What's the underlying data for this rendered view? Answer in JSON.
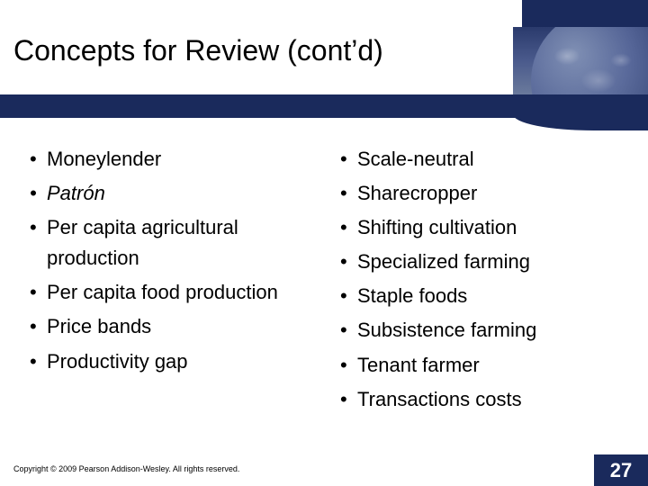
{
  "slide": {
    "title": "Concepts for Review (cont’d)",
    "copyright": "Copyright © 2009 Pearson Addison-Wesley. All rights reserved.",
    "page_number": "27"
  },
  "columns": {
    "left": [
      {
        "text": "Moneylender",
        "italic": false
      },
      {
        "text": "Patrón",
        "italic": true
      },
      {
        "text": "Per capita agricultural production",
        "italic": false
      },
      {
        "text": "Per capita food production",
        "italic": false
      },
      {
        "text": "Price bands",
        "italic": false
      },
      {
        "text": "Productivity gap",
        "italic": false
      }
    ],
    "right": [
      {
        "text": "Scale-neutral",
        "italic": false
      },
      {
        "text": "Sharecropper",
        "italic": false
      },
      {
        "text": "Shifting cultivation",
        "italic": false
      },
      {
        "text": "Specialized farming",
        "italic": false
      },
      {
        "text": "Staple foods",
        "italic": false
      },
      {
        "text": "Subsistence farming",
        "italic": false
      },
      {
        "text": "Tenant farmer",
        "italic": false
      },
      {
        "text": "Transactions costs",
        "italic": false
      }
    ]
  },
  "colors": {
    "navy": "#1a2a5c",
    "background": "#ffffff",
    "text": "#000000"
  }
}
